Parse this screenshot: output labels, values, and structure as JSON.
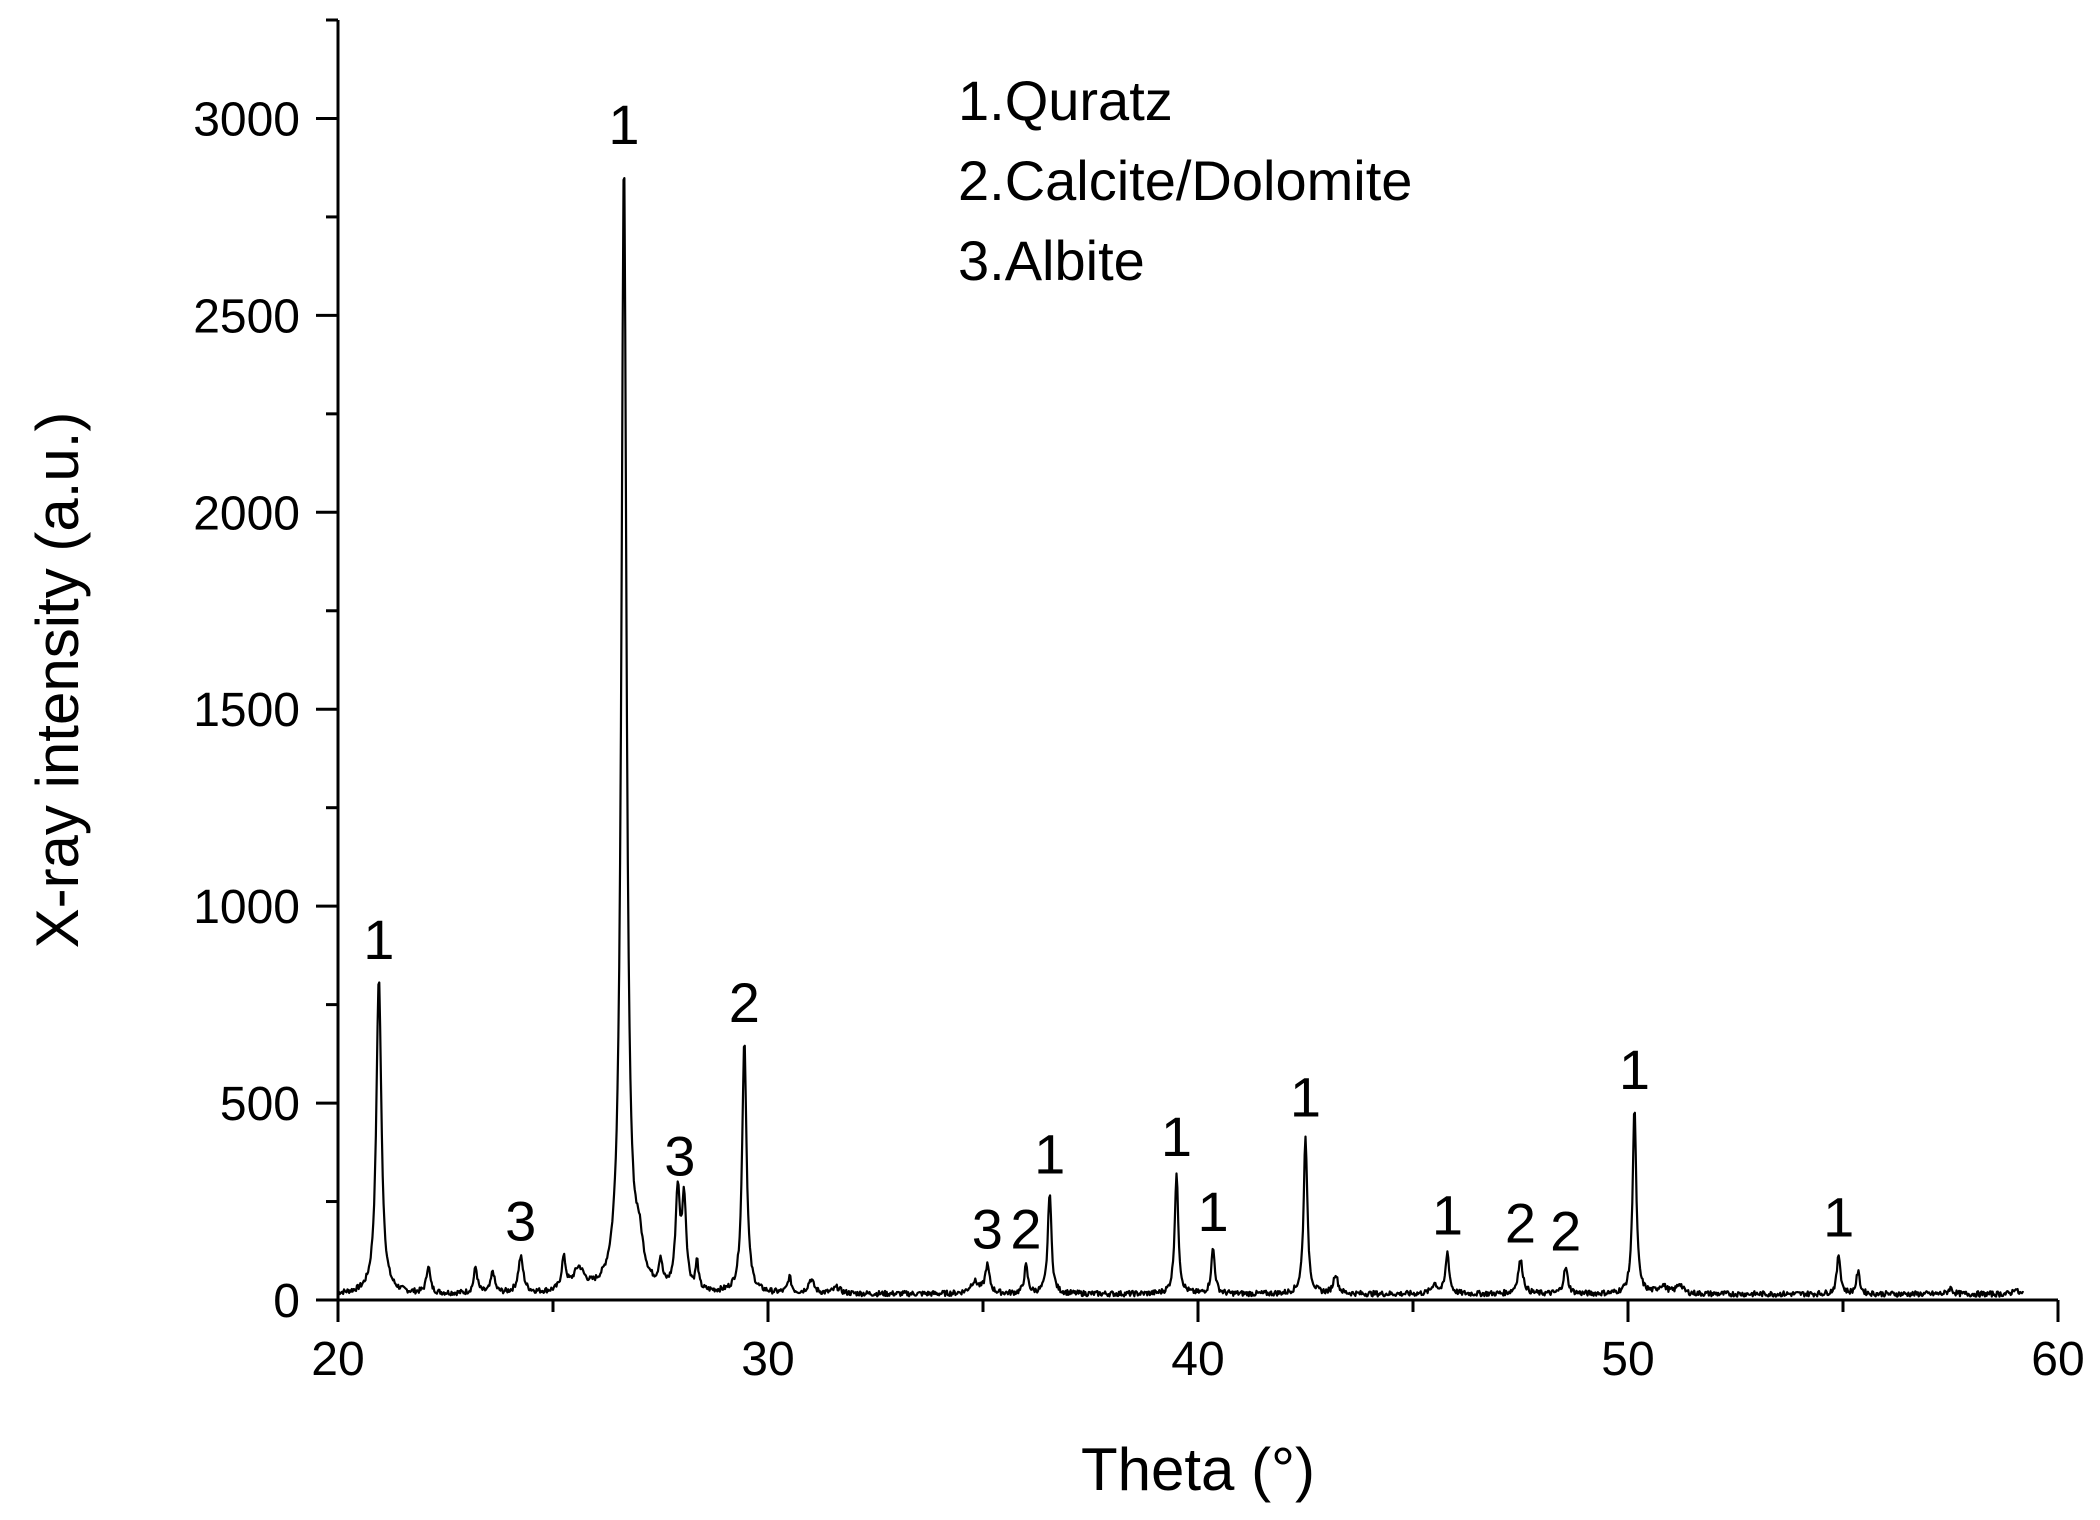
{
  "chart_data": {
    "type": "line",
    "xlabel": "Theta (°)",
    "ylabel": "X-ray intensity (a.u.)",
    "xlim": [
      20,
      60
    ],
    "ylim": [
      0,
      3250
    ],
    "xticks": [
      20,
      30,
      40,
      50,
      60
    ],
    "yticks": [
      0,
      500,
      1000,
      1500,
      2000,
      2500,
      3000
    ],
    "grid": false,
    "legend_placement": "top-center",
    "legend": [
      "1.Quratz",
      "2.Calcite/Dolomite",
      "3.Albite"
    ],
    "series": [
      {
        "color": "#000000",
        "baseline": 15,
        "peaks": [
          {
            "x": 20.95,
            "y": 820,
            "w": 0.07
          },
          {
            "x": 22.1,
            "y": 85,
            "w": 0.05
          },
          {
            "x": 23.2,
            "y": 80,
            "w": 0.05
          },
          {
            "x": 23.6,
            "y": 70,
            "w": 0.05
          },
          {
            "x": 24.25,
            "y": 105,
            "w": 0.07
          },
          {
            "x": 25.25,
            "y": 95,
            "w": 0.06
          },
          {
            "x": 25.6,
            "y": 70,
            "w": 0.15
          },
          {
            "x": 26.65,
            "y": 2890,
            "w": 0.07
          },
          {
            "x": 27.0,
            "y": 110,
            "w": 0.12
          },
          {
            "x": 27.5,
            "y": 80,
            "w": 0.05
          },
          {
            "x": 27.9,
            "y": 260,
            "w": 0.06
          },
          {
            "x": 28.05,
            "y": 240,
            "w": 0.06
          },
          {
            "x": 28.35,
            "y": 85,
            "w": 0.04
          },
          {
            "x": 29.45,
            "y": 660,
            "w": 0.06
          },
          {
            "x": 30.5,
            "y": 55,
            "w": 0.05
          },
          {
            "x": 31.0,
            "y": 50,
            "w": 0.08
          },
          {
            "x": 31.6,
            "y": 30,
            "w": 0.1
          },
          {
            "x": 34.8,
            "y": 45,
            "w": 0.12
          },
          {
            "x": 35.1,
            "y": 85,
            "w": 0.06
          },
          {
            "x": 36.0,
            "y": 85,
            "w": 0.05
          },
          {
            "x": 36.55,
            "y": 275,
            "w": 0.05
          },
          {
            "x": 39.5,
            "y": 320,
            "w": 0.05
          },
          {
            "x": 40.35,
            "y": 130,
            "w": 0.05
          },
          {
            "x": 42.5,
            "y": 420,
            "w": 0.05
          },
          {
            "x": 43.2,
            "y": 65,
            "w": 0.06
          },
          {
            "x": 45.5,
            "y": 40,
            "w": 0.08
          },
          {
            "x": 45.8,
            "y": 120,
            "w": 0.05
          },
          {
            "x": 47.5,
            "y": 100,
            "w": 0.07
          },
          {
            "x": 48.55,
            "y": 80,
            "w": 0.06
          },
          {
            "x": 50.15,
            "y": 490,
            "w": 0.05
          },
          {
            "x": 50.8,
            "y": 35,
            "w": 0.12
          },
          {
            "x": 51.2,
            "y": 40,
            "w": 0.08
          },
          {
            "x": 54.9,
            "y": 115,
            "w": 0.05
          },
          {
            "x": 55.35,
            "y": 70,
            "w": 0.05
          },
          {
            "x": 57.5,
            "y": 30,
            "w": 0.06
          },
          {
            "x": 59.0,
            "y": 30,
            "w": 0.05
          }
        ]
      }
    ],
    "annotations": [
      {
        "text": "1",
        "x": 20.95,
        "y": 820
      },
      {
        "text": "3",
        "x": 24.25,
        "y": 105
      },
      {
        "text": "1",
        "x": 26.65,
        "y": 2890
      },
      {
        "text": "3",
        "x": 27.95,
        "y": 270
      },
      {
        "text": "2",
        "x": 29.45,
        "y": 660
      },
      {
        "text": "3",
        "x": 35.1,
        "y": 85
      },
      {
        "text": "2",
        "x": 36.0,
        "y": 85
      },
      {
        "text": "1",
        "x": 36.55,
        "y": 275
      },
      {
        "text": "1",
        "x": 39.5,
        "y": 320
      },
      {
        "text": "1",
        "x": 40.35,
        "y": 130
      },
      {
        "text": "1",
        "x": 42.5,
        "y": 420
      },
      {
        "text": "1",
        "x": 45.8,
        "y": 120
      },
      {
        "text": "2",
        "x": 47.5,
        "y": 100
      },
      {
        "text": "2",
        "x": 48.55,
        "y": 80
      },
      {
        "text": "1",
        "x": 50.15,
        "y": 490
      },
      {
        "text": "1",
        "x": 54.9,
        "y": 115
      }
    ]
  }
}
